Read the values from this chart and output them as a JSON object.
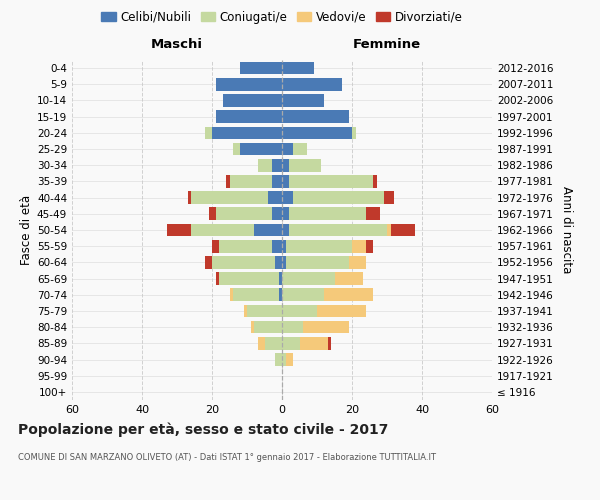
{
  "age_groups": [
    "100+",
    "95-99",
    "90-94",
    "85-89",
    "80-84",
    "75-79",
    "70-74",
    "65-69",
    "60-64",
    "55-59",
    "50-54",
    "45-49",
    "40-44",
    "35-39",
    "30-34",
    "25-29",
    "20-24",
    "15-19",
    "10-14",
    "5-9",
    "0-4"
  ],
  "birth_years": [
    "≤ 1916",
    "1917-1921",
    "1922-1926",
    "1927-1931",
    "1932-1936",
    "1937-1941",
    "1942-1946",
    "1947-1951",
    "1952-1956",
    "1957-1961",
    "1962-1966",
    "1967-1971",
    "1972-1976",
    "1977-1981",
    "1982-1986",
    "1987-1991",
    "1992-1996",
    "1997-2001",
    "2002-2006",
    "2007-2011",
    "2012-2016"
  ],
  "male": {
    "celibi": [
      0,
      0,
      0,
      0,
      0,
      0,
      1,
      1,
      2,
      3,
      8,
      3,
      4,
      3,
      3,
      12,
      20,
      19,
      17,
      19,
      12
    ],
    "coniugati": [
      0,
      0,
      2,
      5,
      8,
      10,
      13,
      17,
      18,
      15,
      18,
      16,
      22,
      12,
      4,
      2,
      2,
      0,
      0,
      0,
      0
    ],
    "vedovi": [
      0,
      0,
      0,
      2,
      1,
      1,
      1,
      0,
      0,
      0,
      0,
      0,
      0,
      0,
      0,
      0,
      0,
      0,
      0,
      0,
      0
    ],
    "divorziati": [
      0,
      0,
      0,
      0,
      0,
      0,
      0,
      1,
      2,
      2,
      7,
      2,
      1,
      1,
      0,
      0,
      0,
      0,
      0,
      0,
      0
    ]
  },
  "female": {
    "nubili": [
      0,
      0,
      0,
      0,
      0,
      0,
      0,
      0,
      1,
      1,
      2,
      2,
      3,
      2,
      2,
      3,
      20,
      19,
      12,
      17,
      9
    ],
    "coniugate": [
      0,
      0,
      1,
      5,
      6,
      10,
      12,
      15,
      18,
      19,
      28,
      22,
      26,
      24,
      9,
      4,
      1,
      0,
      0,
      0,
      0
    ],
    "vedove": [
      0,
      0,
      2,
      8,
      13,
      14,
      14,
      8,
      5,
      4,
      1,
      0,
      0,
      0,
      0,
      0,
      0,
      0,
      0,
      0,
      0
    ],
    "divorziate": [
      0,
      0,
      0,
      1,
      0,
      0,
      0,
      0,
      0,
      2,
      7,
      4,
      3,
      1,
      0,
      0,
      0,
      0,
      0,
      0,
      0
    ]
  },
  "colors": {
    "celibi_nubili": "#4a7ab5",
    "coniugati": "#c5d9a0",
    "vedovi": "#f5c97a",
    "divorziati": "#c0392b"
  },
  "title": "Popolazione per età, sesso e stato civile - 2017",
  "subtitle": "COMUNE DI SAN MARZANO OLIVETO (AT) - Dati ISTAT 1° gennaio 2017 - Elaborazione TUTTITALIA.IT",
  "xlabel_left": "Maschi",
  "xlabel_right": "Femmine",
  "ylabel_left": "Fasce di età",
  "ylabel_right": "Anni di nascita",
  "xlim": 60,
  "bg_color": "#f9f9f9",
  "grid_color": "#cccccc"
}
